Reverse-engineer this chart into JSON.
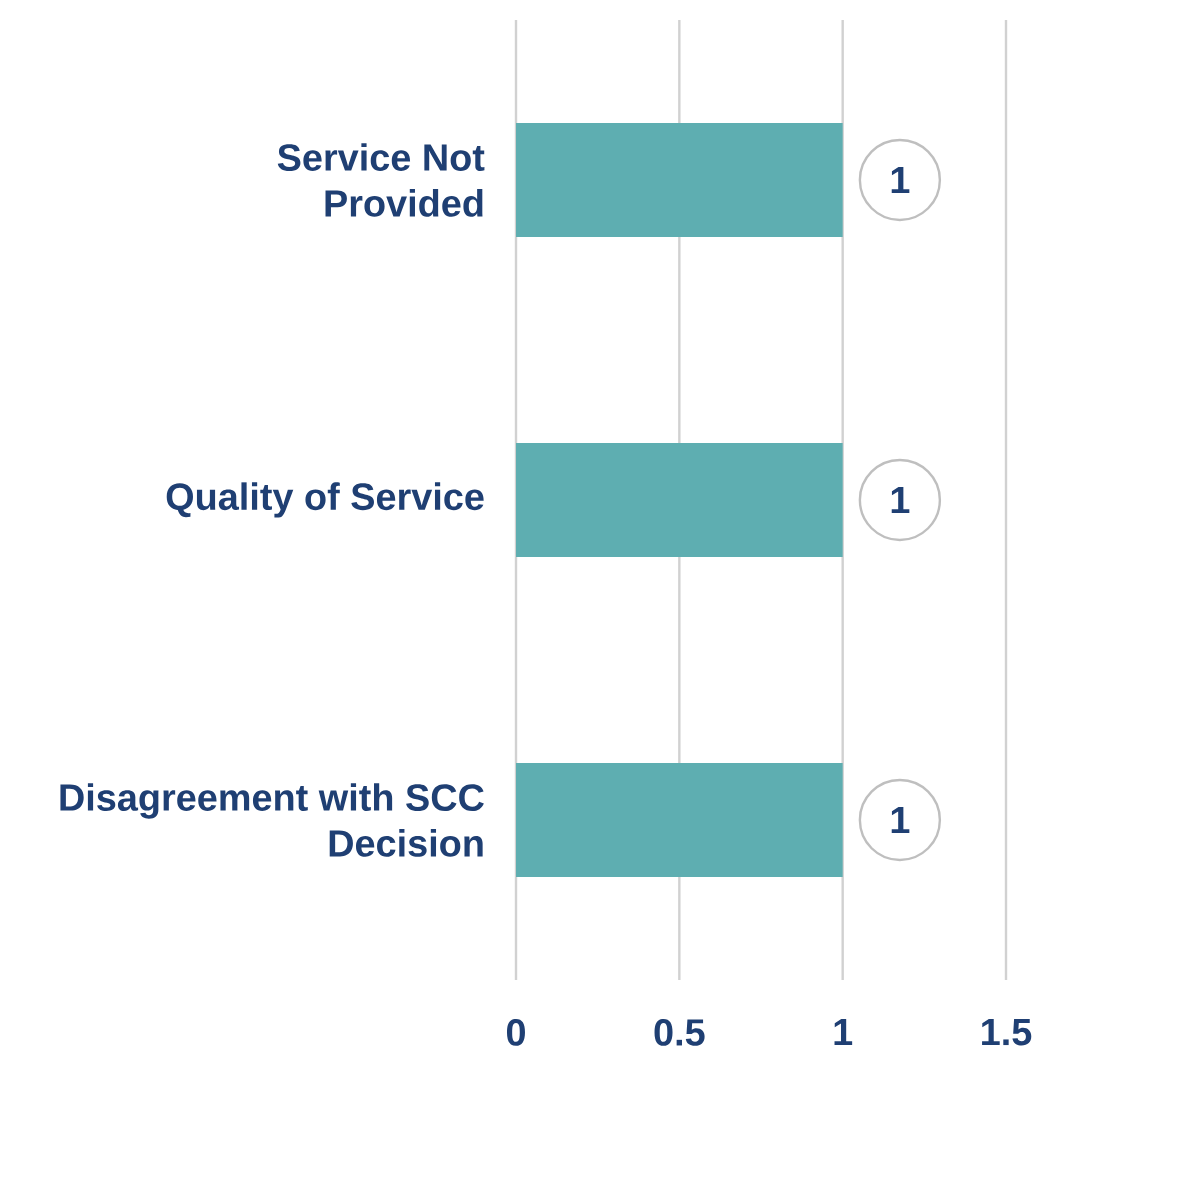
{
  "chart_data": {
    "type": "bar",
    "orientation": "horizontal",
    "categories": [
      "Service Not Provided",
      "Quality of Service",
      "Disagreement with SCC Decision"
    ],
    "values": [
      1,
      1,
      1
    ],
    "color": "#5eaeb1",
    "xlim": [
      0,
      1.5
    ],
    "xticks": [
      0,
      0.5,
      1,
      1.5
    ],
    "grid": "x",
    "data_labels": true
  }
}
